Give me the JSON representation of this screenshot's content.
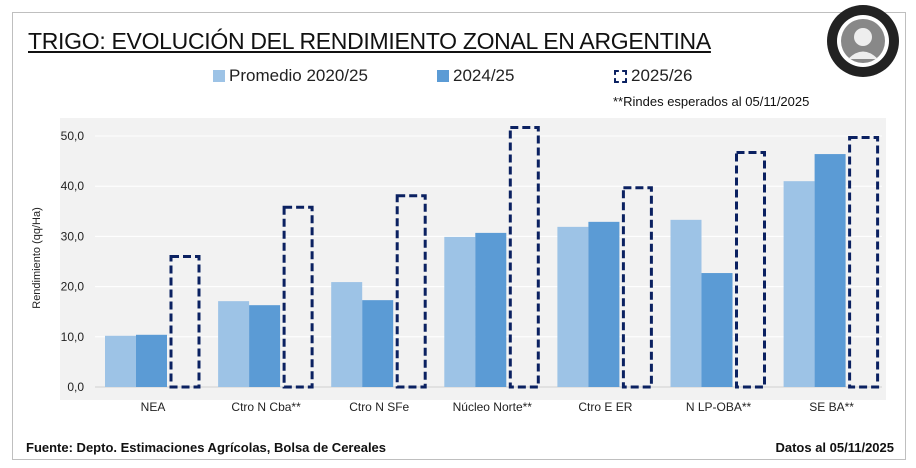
{
  "title": "TRIGO: EVOLUCIÓN DEL RENDIMIENTO ZONAL EN ARGENTINA",
  "note": "**Rindes esperados al 05/11/2025",
  "footer": {
    "source": "Fuente: Depto. Estimaciones Agrícolas, Bolsa de Cereales",
    "date": "Datos al 05/11/2025"
  },
  "logo_text": "Bolsa de Cereales",
  "colors": {
    "avg": "#9dc3e6",
    "prev": "#5b9bd5",
    "current": "#0b2161",
    "plot_bg": "#f2f2f2"
  },
  "chart_data": {
    "type": "bar",
    "title": "TRIGO: EVOLUCIÓN DEL RENDIMIENTO ZONAL EN ARGENTINA",
    "xlabel": "",
    "ylabel": "Rendimiento (qq/Ha)",
    "ylim": [
      0,
      50
    ],
    "yticks": [
      "0,0",
      "10,0",
      "20,0",
      "30,0",
      "40,0",
      "50,0"
    ],
    "grid": true,
    "legend_position": "top",
    "categories": [
      "NEA",
      "Ctro N Cba**",
      "Ctro N SFe",
      "Núcleo Norte**",
      "Ctro E ER",
      "N LP-OBA**",
      "SE BA**"
    ],
    "series": [
      {
        "name": "Promedio 2020/25",
        "style": "solid",
        "values": [
          10.2,
          17.1,
          20.9,
          29.9,
          31.9,
          33.3,
          41.0
        ]
      },
      {
        "name": "2024/25",
        "style": "solid",
        "values": [
          10.4,
          16.3,
          17.3,
          30.7,
          32.9,
          22.7,
          46.4
        ]
      },
      {
        "name": "2025/26",
        "style": "dashed",
        "values": [
          26.3,
          36.1,
          38.4,
          52.0,
          40.0,
          47.0,
          50.0
        ]
      }
    ]
  }
}
